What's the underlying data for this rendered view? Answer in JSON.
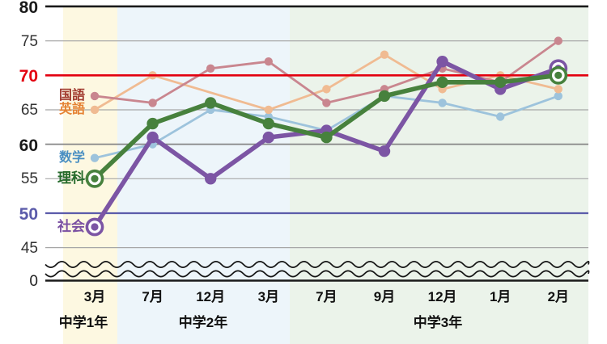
{
  "chart_data": {
    "type": "line",
    "title": "",
    "x_labels": [
      "3月",
      "7月",
      "12月",
      "3月",
      "7月",
      "9月",
      "12月",
      "1月",
      "2月"
    ],
    "grade_bands": [
      {
        "label": "中学1年",
        "fill": "#fdf8e1",
        "month_indices": [
          0,
          0
        ]
      },
      {
        "label": "中学2年",
        "fill": "#edf5fa",
        "month_indices": [
          1,
          3
        ]
      },
      {
        "label": "中学3年",
        "fill": "#ebf3ea",
        "month_indices": [
          4,
          8
        ]
      }
    ],
    "y_axis": {
      "ticks": [
        {
          "label": "80",
          "value": 80,
          "style": "bold-axis"
        },
        {
          "label": "75",
          "value": 75,
          "style": "plain"
        },
        {
          "label": "70",
          "value": 70,
          "style": "bold-red"
        },
        {
          "label": "65",
          "value": 65,
          "style": "plain"
        },
        {
          "label": "60",
          "value": 60,
          "style": "bold-mid"
        },
        {
          "label": "55",
          "value": 55,
          "style": "plain"
        },
        {
          "label": "50",
          "value": 50,
          "style": "bold-indigo"
        },
        {
          "label": "45",
          "value": 45,
          "style": "plain"
        },
        {
          "label": "0",
          "value": 0,
          "style": "plain-axis"
        }
      ],
      "axis_break": true,
      "ylim_visible": [
        45,
        80
      ]
    },
    "series": [
      {
        "key": "kokugo",
        "name": "国語",
        "color": "#c9868f",
        "label_color": "#a13b30",
        "emphasis": false,
        "values": [
          67,
          66,
          71,
          72,
          66,
          68,
          71,
          69,
          75
        ]
      },
      {
        "key": "eigo",
        "name": "英語",
        "color": "#f0bb92",
        "label_color": "#e58233",
        "emphasis": false,
        "values": [
          65,
          70,
          null,
          65,
          68,
          73,
          68,
          70,
          68
        ]
      },
      {
        "key": "sugaku",
        "name": "数学",
        "color": "#9dc3dc",
        "label_color": "#4a8fc2",
        "emphasis": false,
        "values": [
          58,
          60,
          65,
          64,
          62,
          67,
          66,
          64,
          67
        ]
      },
      {
        "key": "rika",
        "name": "理科",
        "color": "#47813d",
        "label_color": "#276b2d",
        "emphasis": true,
        "values": [
          55,
          63,
          66,
          63,
          61,
          67,
          69,
          69,
          70
        ]
      },
      {
        "key": "shakai",
        "name": "社会",
        "color": "#7c55a4",
        "label_color": "#7a50a2",
        "emphasis": true,
        "values": [
          48,
          61,
          55,
          61,
          62,
          59,
          72,
          68,
          71
        ]
      }
    ],
    "reference_lines": [
      {
        "value": 70,
        "color": "#e3000f"
      },
      {
        "value": 50,
        "color": "#5b5baa"
      }
    ],
    "colors": {
      "red_line": "#e3000f",
      "indigo_line": "#5b5baa",
      "grid": "#a7a7a7",
      "mid_grid": "#858585",
      "axis": "#1a1a1a"
    },
    "grid": "horizontal-only",
    "legend_position": "left-inline"
  }
}
